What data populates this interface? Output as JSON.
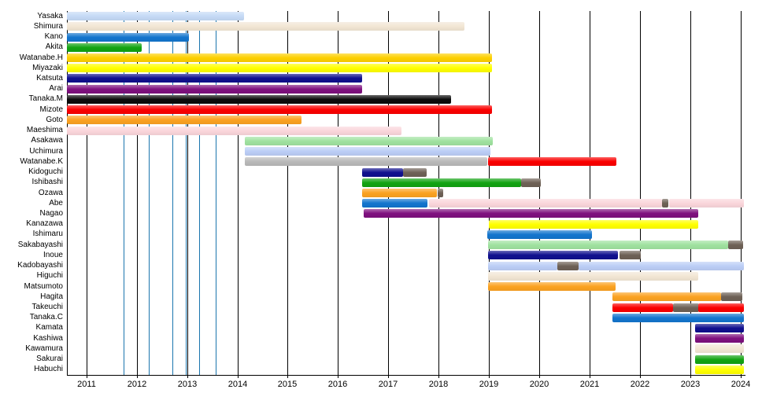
{
  "chart_data": {
    "type": "gantt",
    "title": "",
    "xlabel": "",
    "ylabel": "",
    "axis": {
      "x_min": 2010.61,
      "x_max": 2024.07,
      "tick_years": [
        2011,
        2012,
        2013,
        2014,
        2015,
        2016,
        2017,
        2018,
        2019,
        2020,
        2021,
        2022,
        2023,
        2024
      ],
      "tick_labels": [
        "2011",
        "2012",
        "2013",
        "2014",
        "2015",
        "2016",
        "2017",
        "2018",
        "2019",
        "2020",
        "2021",
        "2022",
        "2023",
        "2024"
      ],
      "grid": true
    },
    "palette": {
      "paleblue": "#c5daf6",
      "cream": "#f2e6d4",
      "blue": "#1375cd",
      "green": "#12a312",
      "gold": "#fdd000",
      "yellow": "#ffff00",
      "navy": "#10108e",
      "purple": "#7e107e",
      "black": "#0b0b0b",
      "red": "#fa0000",
      "orange": "#fba221",
      "pink": "#fad6db",
      "lightgreen": "#a0e2a0",
      "periwinkle": "#bccef6",
      "gray": "#b9b9b9",
      "darkgray": "#6e6156"
    },
    "event_line_color": "#1b75ae",
    "event_lines": [
      2011.74,
      2012.24,
      2012.71,
      2012.97,
      2013.24,
      2013.57
    ],
    "rows": [
      {
        "label": "Yasaka",
        "segments": [
          {
            "start": 2010.61,
            "end": 2014.13,
            "color": "paleblue"
          }
        ]
      },
      {
        "label": "Shimura",
        "segments": [
          {
            "start": 2010.61,
            "end": 2018.51,
            "color": "cream"
          }
        ]
      },
      {
        "label": "Kano",
        "segments": [
          {
            "start": 2010.61,
            "end": 2013.03,
            "color": "blue"
          }
        ]
      },
      {
        "label": "Akita",
        "segments": [
          {
            "start": 2010.61,
            "end": 2012.1,
            "color": "green"
          }
        ]
      },
      {
        "label": "Watanabe.H",
        "segments": [
          {
            "start": 2010.61,
            "end": 2019.06,
            "color": "gold"
          }
        ]
      },
      {
        "label": "Miyazaki",
        "segments": [
          {
            "start": 2010.61,
            "end": 2019.06,
            "color": "yellow"
          }
        ]
      },
      {
        "label": "Katsuta",
        "segments": [
          {
            "start": 2010.61,
            "end": 2016.48,
            "color": "navy"
          }
        ]
      },
      {
        "label": "Arai",
        "segments": [
          {
            "start": 2010.61,
            "end": 2016.48,
            "color": "purple"
          }
        ]
      },
      {
        "label": "Tanaka.M",
        "segments": [
          {
            "start": 2010.61,
            "end": 2018.25,
            "color": "black"
          }
        ]
      },
      {
        "label": "Mizote",
        "segments": [
          {
            "start": 2010.61,
            "end": 2019.06,
            "color": "red"
          }
        ]
      },
      {
        "label": "Goto",
        "segments": [
          {
            "start": 2010.61,
            "end": 2015.27,
            "color": "orange"
          }
        ]
      },
      {
        "label": "Maeshima",
        "segments": [
          {
            "start": 2010.61,
            "end": 2017.26,
            "color": "pink"
          }
        ]
      },
      {
        "label": "Asakawa",
        "segments": [
          {
            "start": 2014.15,
            "end": 2019.08,
            "color": "lightgreen"
          }
        ]
      },
      {
        "label": "Uchimura",
        "segments": [
          {
            "start": 2014.15,
            "end": 2019.03,
            "color": "periwinkle"
          }
        ]
      },
      {
        "label": "Watanabe.K",
        "segments": [
          {
            "start": 2014.15,
            "end": 2018.97,
            "color": "gray"
          },
          {
            "start": 2018.98,
            "end": 2021.53,
            "color": "red"
          }
        ]
      },
      {
        "label": "Kidoguchi",
        "segments": [
          {
            "start": 2016.48,
            "end": 2017.29,
            "color": "navy"
          },
          {
            "start": 2017.29,
            "end": 2017.76,
            "color": "darkgray"
          }
        ]
      },
      {
        "label": "Ishibashi",
        "segments": [
          {
            "start": 2016.48,
            "end": 2019.64,
            "color": "green"
          },
          {
            "start": 2019.64,
            "end": 2020.03,
            "color": "darkgray"
          }
        ]
      },
      {
        "label": "Ozawa",
        "segments": [
          {
            "start": 2016.48,
            "end": 2017.96,
            "color": "orange"
          },
          {
            "start": 2017.98,
            "end": 2018.09,
            "color": "darkgray"
          }
        ]
      },
      {
        "label": "Abe",
        "segments": [
          {
            "start": 2016.48,
            "end": 2017.78,
            "color": "blue"
          },
          {
            "start": 2017.81,
            "end": 2022.45,
            "color": "pink"
          },
          {
            "start": 2022.45,
            "end": 2022.58,
            "color": "darkgray"
          },
          {
            "start": 2022.58,
            "end": 2024.07,
            "color": "pink"
          }
        ]
      },
      {
        "label": "Nagao",
        "segments": [
          {
            "start": 2016.51,
            "end": 2023.16,
            "color": "purple"
          }
        ]
      },
      {
        "label": "Kanazawa",
        "segments": [
          {
            "start": 2019.0,
            "end": 2023.16,
            "color": "yellow"
          }
        ]
      },
      {
        "label": "Ishimaru",
        "segments": [
          {
            "start": 2018.97,
            "end": 2021.05,
            "color": "blue"
          }
        ]
      },
      {
        "label": "Sakabayashi",
        "segments": [
          {
            "start": 2018.98,
            "end": 2023.75,
            "color": "lightgreen"
          },
          {
            "start": 2023.75,
            "end": 2024.04,
            "color": "darkgray"
          }
        ]
      },
      {
        "label": "Inoue",
        "segments": [
          {
            "start": 2018.98,
            "end": 2021.56,
            "color": "navy"
          },
          {
            "start": 2021.59,
            "end": 2022.02,
            "color": "darkgray"
          }
        ]
      },
      {
        "label": "Kadobayashi",
        "segments": [
          {
            "start": 2018.98,
            "end": 2020.36,
            "color": "periwinkle"
          },
          {
            "start": 2020.36,
            "end": 2020.78,
            "color": "darkgray"
          },
          {
            "start": 2020.78,
            "end": 2024.07,
            "color": "periwinkle"
          }
        ]
      },
      {
        "label": "Higuchi",
        "segments": [
          {
            "start": 2018.98,
            "end": 2023.16,
            "color": "cream"
          }
        ]
      },
      {
        "label": "Matsumoto",
        "segments": [
          {
            "start": 2018.98,
            "end": 2021.52,
            "color": "orange"
          }
        ]
      },
      {
        "label": "Hagita",
        "segments": [
          {
            "start": 2021.45,
            "end": 2023.61,
            "color": "orange"
          },
          {
            "start": 2023.61,
            "end": 2024.04,
            "color": "darkgray"
          }
        ]
      },
      {
        "label": "Takeuchi",
        "segments": [
          {
            "start": 2021.45,
            "end": 2022.66,
            "color": "red"
          },
          {
            "start": 2022.66,
            "end": 2023.17,
            "color": "darkgray"
          },
          {
            "start": 2023.17,
            "end": 2024.07,
            "color": "red"
          }
        ]
      },
      {
        "label": "Tanaka.C",
        "segments": [
          {
            "start": 2021.45,
            "end": 2024.07,
            "color": "blue"
          }
        ]
      },
      {
        "label": "Kamata",
        "segments": [
          {
            "start": 2023.1,
            "end": 2024.07,
            "color": "navy"
          }
        ]
      },
      {
        "label": "Kashiwa",
        "segments": [
          {
            "start": 2023.1,
            "end": 2024.07,
            "color": "purple"
          }
        ]
      },
      {
        "label": "Kawamura",
        "segments": [
          {
            "start": 2023.1,
            "end": 2024.07,
            "color": "cream"
          }
        ]
      },
      {
        "label": "Sakurai",
        "segments": [
          {
            "start": 2023.1,
            "end": 2024.07,
            "color": "green"
          }
        ]
      },
      {
        "label": "Habuchi",
        "segments": [
          {
            "start": 2023.1,
            "end": 2024.07,
            "color": "yellow"
          }
        ]
      }
    ]
  }
}
